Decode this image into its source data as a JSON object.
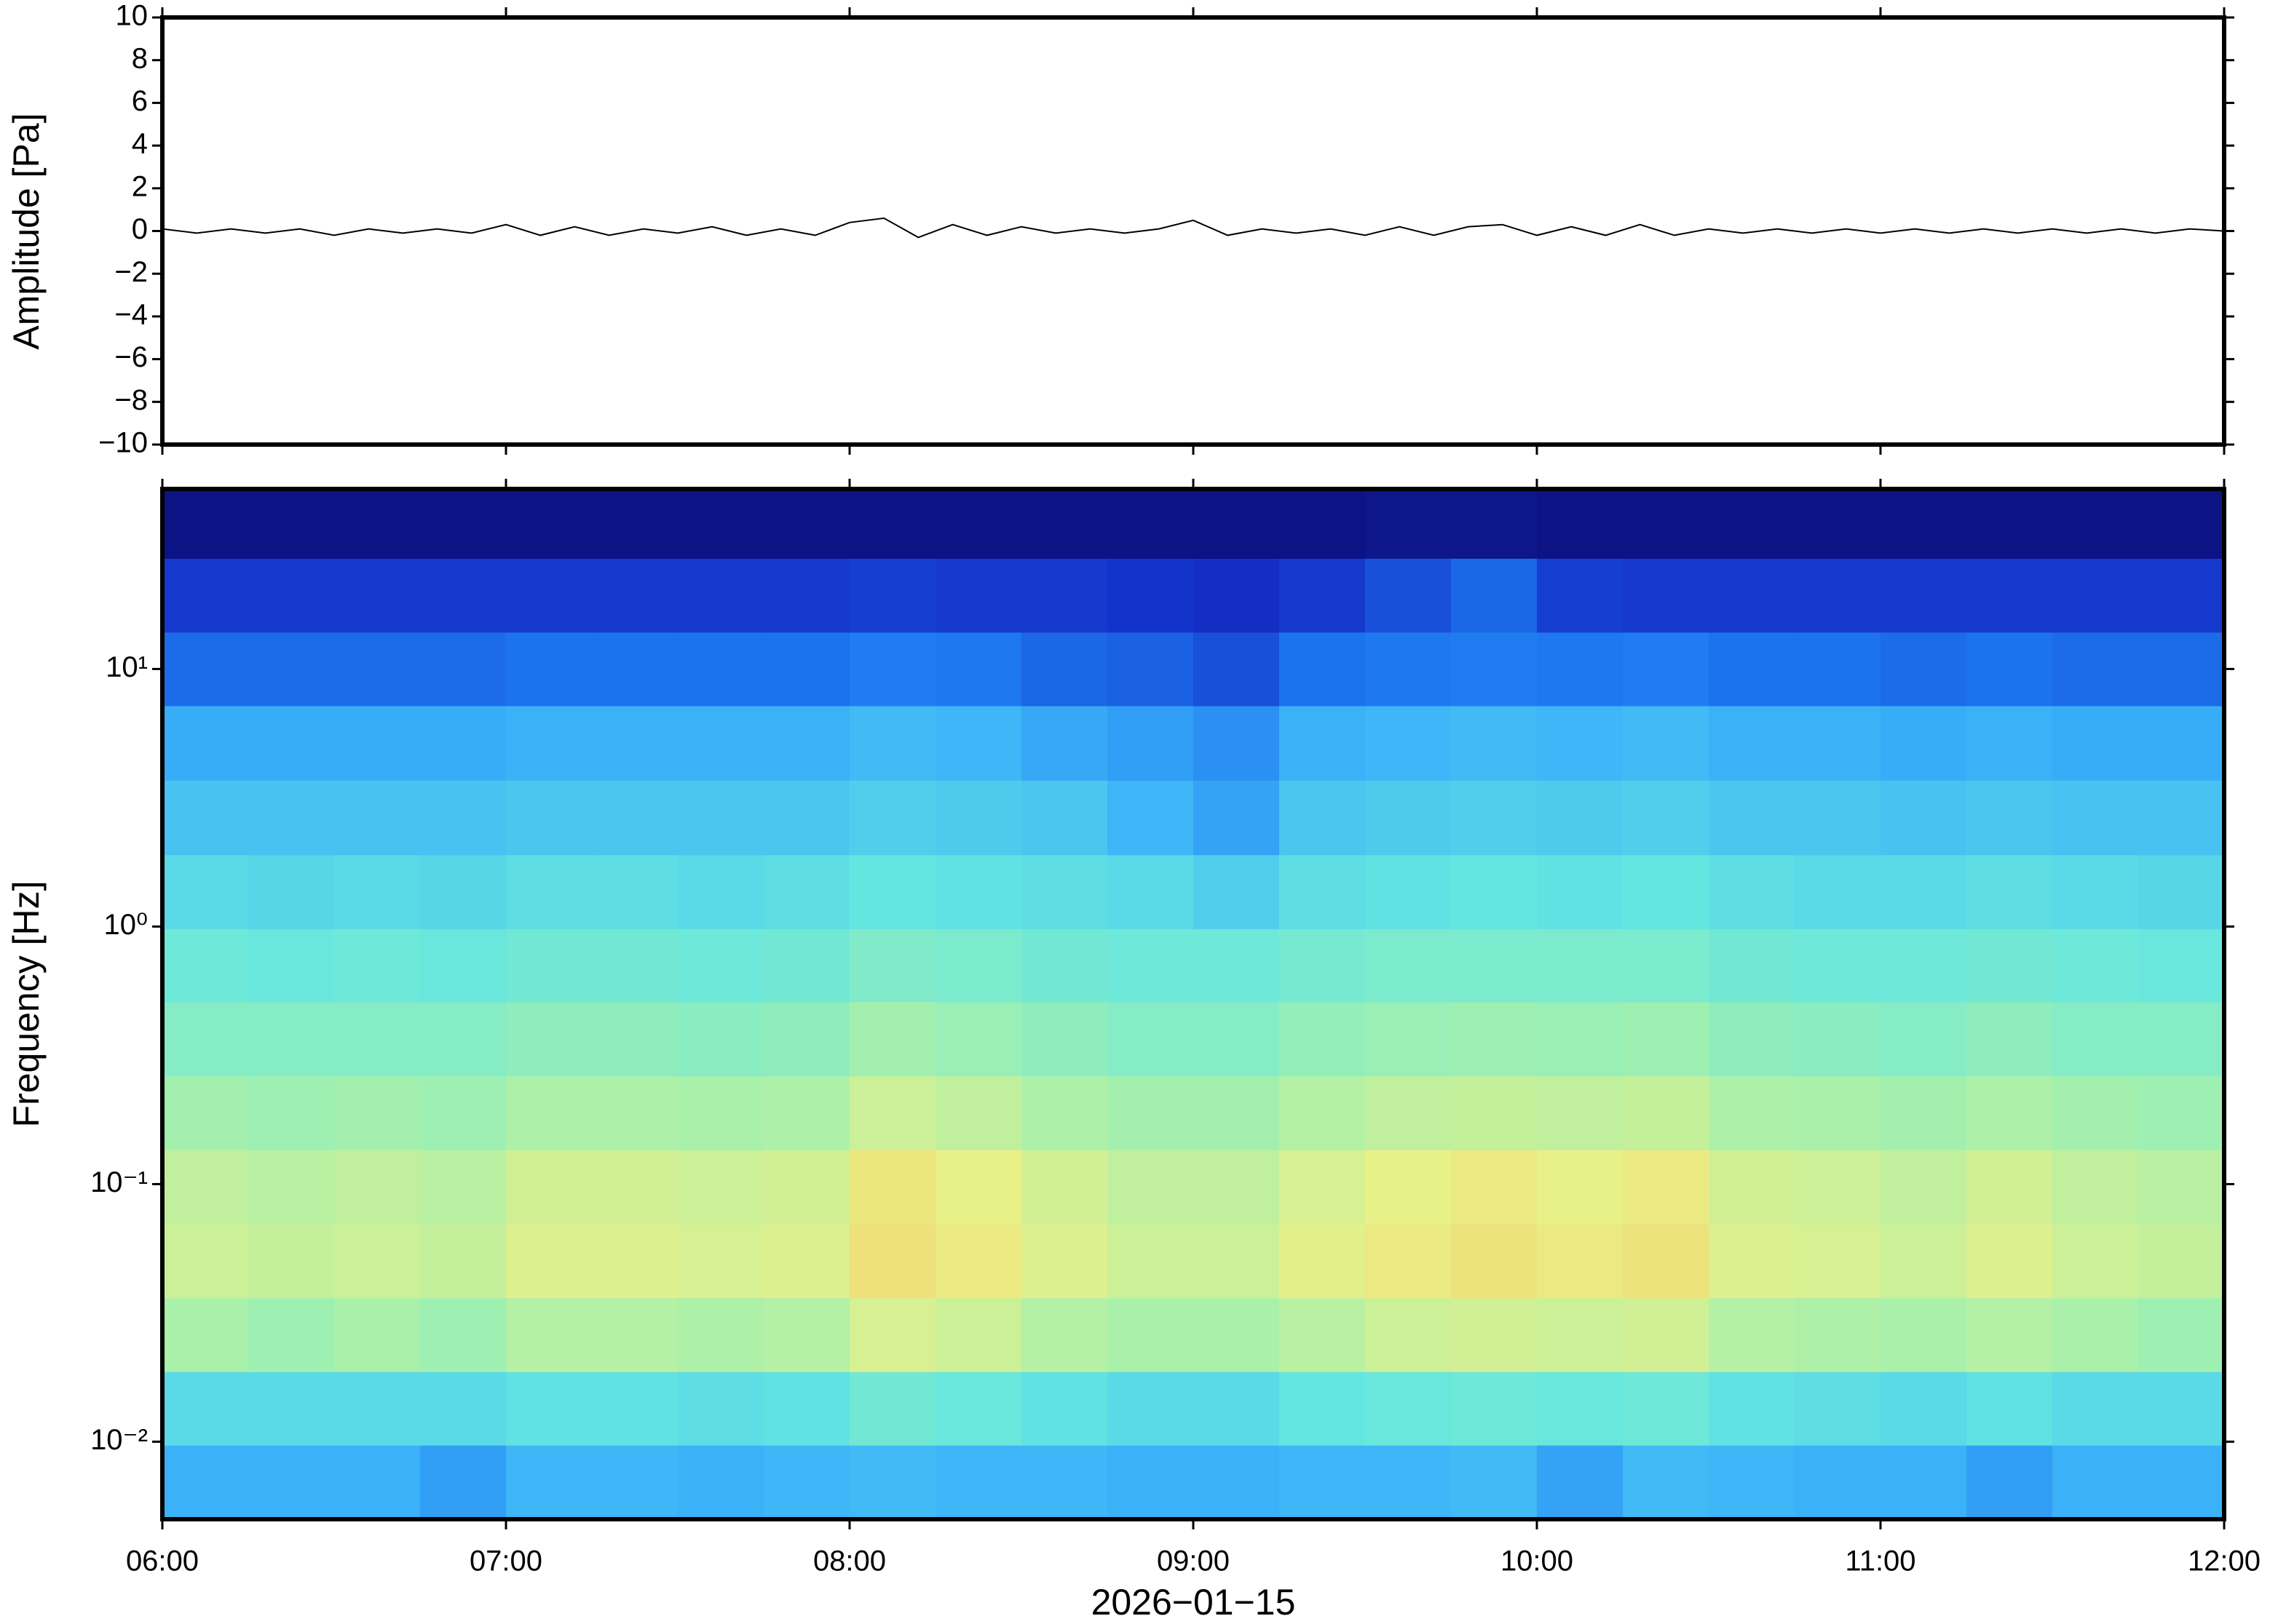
{
  "chart_data": [
    {
      "type": "line",
      "ylabel": "Amplitude [Pa]",
      "color": "#000000",
      "xlim": [
        6,
        12
      ],
      "ylim": [
        -10,
        10
      ],
      "yticks": [
        {
          "value": -10,
          "label": "−10"
        },
        {
          "value": -8,
          "label": "−8"
        },
        {
          "value": -6,
          "label": "−6"
        },
        {
          "value": -4,
          "label": "−4"
        },
        {
          "value": -2,
          "label": "−2"
        },
        0,
        2,
        4,
        6,
        8,
        10
      ],
      "x": [
        6.0,
        6.1,
        6.2,
        6.3,
        6.4,
        6.5,
        6.6,
        6.7,
        6.8,
        6.9,
        7.0,
        7.1,
        7.2,
        7.3,
        7.4,
        7.5,
        7.6,
        7.7,
        7.8,
        7.9,
        8.0,
        8.1,
        8.2,
        8.3,
        8.4,
        8.5,
        8.6,
        8.7,
        8.8,
        8.9,
        9.0,
        9.1,
        9.2,
        9.3,
        9.4,
        9.5,
        9.6,
        9.7,
        9.8,
        9.9,
        10.0,
        10.1,
        10.2,
        10.3,
        10.4,
        10.5,
        10.6,
        10.7,
        10.8,
        10.9,
        11.0,
        11.1,
        11.2,
        11.3,
        11.4,
        11.5,
        11.6,
        11.7,
        11.8,
        11.9,
        12.0
      ],
      "values": [
        0.1,
        -0.1,
        0.1,
        -0.1,
        0.1,
        -0.2,
        0.1,
        -0.1,
        0.1,
        -0.1,
        0.3,
        -0.2,
        0.2,
        -0.2,
        0.1,
        -0.1,
        0.2,
        -0.2,
        0.1,
        -0.2,
        0.4,
        0.6,
        -0.3,
        0.3,
        -0.2,
        0.2,
        -0.1,
        0.1,
        -0.1,
        0.1,
        0.5,
        -0.2,
        0.1,
        -0.1,
        0.1,
        -0.2,
        0.2,
        -0.2,
        0.2,
        0.3,
        -0.2,
        0.2,
        -0.2,
        0.3,
        -0.2,
        0.1,
        -0.1,
        0.1,
        -0.1,
        0.1,
        -0.1,
        0.1,
        -0.1,
        0.1,
        -0.1,
        0.1,
        -0.1,
        0.1,
        -0.1,
        0.1,
        0.0
      ]
    },
    {
      "type": "heatmap",
      "ylabel": "Frequency [Hz]",
      "xlabel": "2026−01−15",
      "xlim": [
        6,
        12
      ],
      "xticks": [
        {
          "value": 6,
          "label": "06:00"
        },
        {
          "value": 7,
          "label": "07:00"
        },
        {
          "value": 8,
          "label": "08:00"
        },
        {
          "value": 9,
          "label": "09:00"
        },
        {
          "value": 10,
          "label": "10:00"
        },
        {
          "value": 11,
          "label": "11:00"
        },
        {
          "value": 12,
          "label": "12:00"
        }
      ],
      "ylim": [
        0.005,
        50
      ],
      "yscale": "log",
      "yticks": [
        {
          "value": 0.01,
          "label": "10⁻²"
        },
        {
          "value": 0.1,
          "label": "10⁻¹"
        },
        {
          "value": 1,
          "label": "10⁰"
        },
        {
          "value": 10,
          "label": "10¹"
        }
      ],
      "zlim": [
        0,
        1
      ],
      "colormap": [
        "#0a0a6e",
        "#1430c8",
        "#1e78f0",
        "#3cb4f8",
        "#64e6e0",
        "#a0f0b0",
        "#e8f088",
        "#f8c864",
        "#f07840"
      ],
      "x": [
        6,
        6.25,
        6.5,
        6.75,
        7,
        7.25,
        7.5,
        7.75,
        8,
        8.25,
        8.5,
        8.75,
        9,
        9.25,
        9.5,
        9.75,
        10,
        10.25,
        10.5,
        10.75,
        11,
        11.25,
        11.5,
        11.75,
        12
      ],
      "y": [
        0.005,
        0.0097,
        0.0187,
        0.0362,
        0.07,
        0.136,
        0.263,
        0.51,
        0.98,
        1.9,
        3.7,
        7.2,
        13.9,
        26.9,
        50
      ],
      "z": [
        [
          0.37,
          0.37,
          0.37,
          0.33,
          0.38,
          0.38,
          0.37,
          0.38,
          0.39,
          0.38,
          0.38,
          0.37,
          0.37,
          0.38,
          0.38,
          0.39,
          0.34,
          0.39,
          0.38,
          0.37,
          0.37,
          0.33,
          0.37,
          0.37
        ],
        [
          0.47,
          0.47,
          0.47,
          0.47,
          0.49,
          0.49,
          0.48,
          0.49,
          0.53,
          0.51,
          0.49,
          0.47,
          0.47,
          0.5,
          0.51,
          0.52,
          0.51,
          0.52,
          0.49,
          0.48,
          0.47,
          0.49,
          0.47,
          0.47
        ],
        [
          0.64,
          0.62,
          0.64,
          0.62,
          0.66,
          0.66,
          0.65,
          0.66,
          0.72,
          0.7,
          0.66,
          0.64,
          0.64,
          0.67,
          0.7,
          0.71,
          0.7,
          0.71,
          0.66,
          0.65,
          0.64,
          0.66,
          0.64,
          0.62
        ],
        [
          0.7,
          0.69,
          0.7,
          0.69,
          0.73,
          0.73,
          0.72,
          0.73,
          0.8,
          0.77,
          0.73,
          0.7,
          0.7,
          0.74,
          0.77,
          0.79,
          0.77,
          0.79,
          0.73,
          0.72,
          0.7,
          0.73,
          0.7,
          0.69
        ],
        [
          0.68,
          0.67,
          0.68,
          0.67,
          0.71,
          0.71,
          0.7,
          0.71,
          0.78,
          0.75,
          0.71,
          0.68,
          0.68,
          0.72,
          0.75,
          0.77,
          0.75,
          0.77,
          0.71,
          0.7,
          0.68,
          0.71,
          0.68,
          0.67
        ],
        [
          0.63,
          0.62,
          0.63,
          0.62,
          0.65,
          0.65,
          0.64,
          0.65,
          0.7,
          0.68,
          0.65,
          0.63,
          0.63,
          0.66,
          0.68,
          0.69,
          0.68,
          0.69,
          0.65,
          0.64,
          0.63,
          0.65,
          0.63,
          0.62
        ],
        [
          0.57,
          0.57,
          0.57,
          0.57,
          0.59,
          0.59,
          0.58,
          0.59,
          0.63,
          0.61,
          0.59,
          0.57,
          0.57,
          0.6,
          0.61,
          0.62,
          0.61,
          0.62,
          0.59,
          0.58,
          0.57,
          0.59,
          0.57,
          0.57
        ],
        [
          0.52,
          0.51,
          0.52,
          0.51,
          0.53,
          0.53,
          0.52,
          0.53,
          0.56,
          0.55,
          0.53,
          0.52,
          0.52,
          0.54,
          0.55,
          0.55,
          0.55,
          0.55,
          0.53,
          0.52,
          0.52,
          0.53,
          0.52,
          0.51
        ],
        [
          0.47,
          0.46,
          0.47,
          0.46,
          0.48,
          0.48,
          0.47,
          0.48,
          0.5,
          0.49,
          0.48,
          0.47,
          0.44,
          0.48,
          0.49,
          0.5,
          0.49,
          0.5,
          0.48,
          0.47,
          0.47,
          0.48,
          0.47,
          0.46
        ],
        [
          0.41,
          0.41,
          0.41,
          0.41,
          0.42,
          0.42,
          0.42,
          0.42,
          0.44,
          0.43,
          0.42,
          0.38,
          0.34,
          0.42,
          0.43,
          0.44,
          0.43,
          0.44,
          0.42,
          0.42,
          0.41,
          0.42,
          0.41,
          0.41
        ],
        [
          0.36,
          0.36,
          0.36,
          0.36,
          0.37,
          0.37,
          0.37,
          0.37,
          0.39,
          0.38,
          0.35,
          0.33,
          0.3,
          0.37,
          0.38,
          0.39,
          0.38,
          0.39,
          0.37,
          0.37,
          0.36,
          0.37,
          0.36,
          0.36
        ],
        [
          0.23,
          0.23,
          0.23,
          0.23,
          0.24,
          0.24,
          0.24,
          0.24,
          0.26,
          0.25,
          0.22,
          0.21,
          0.18,
          0.24,
          0.25,
          0.26,
          0.25,
          0.26,
          0.24,
          0.24,
          0.23,
          0.24,
          0.23,
          0.23
        ],
        [
          0.14,
          0.14,
          0.14,
          0.14,
          0.14,
          0.14,
          0.14,
          0.14,
          0.15,
          0.14,
          0.14,
          0.13,
          0.12,
          0.14,
          0.18,
          0.22,
          0.15,
          0.14,
          0.14,
          0.14,
          0.14,
          0.14,
          0.14,
          0.14
        ],
        [
          0.03,
          0.03,
          0.03,
          0.03,
          0.03,
          0.03,
          0.03,
          0.03,
          0.03,
          0.03,
          0.03,
          0.03,
          0.03,
          0.03,
          0.04,
          0.04,
          0.03,
          0.03,
          0.03,
          0.03,
          0.03,
          0.03,
          0.03,
          0.03
        ]
      ]
    }
  ]
}
